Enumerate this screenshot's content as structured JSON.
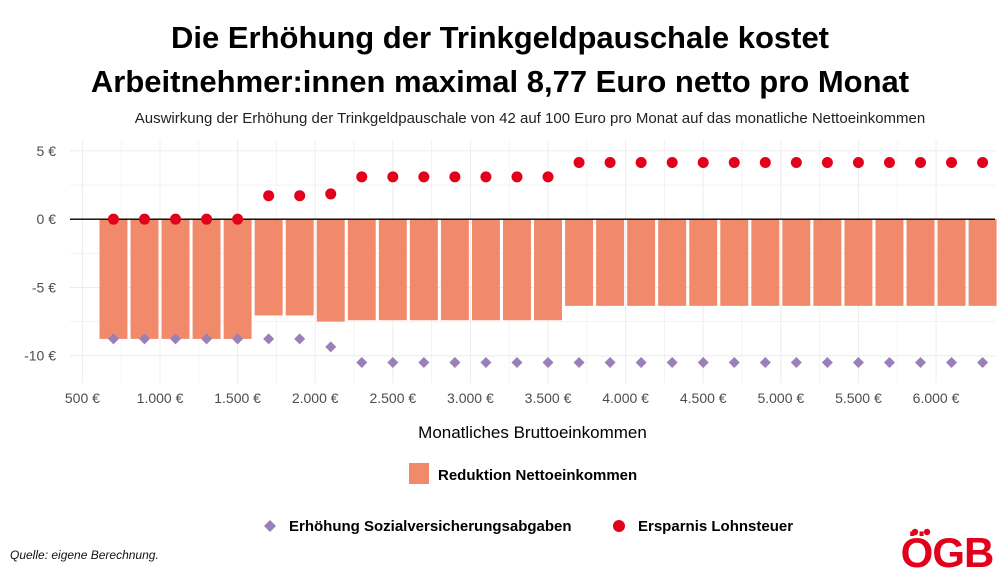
{
  "title_line1": "Die Erhöhung der Trinkgeldpauschale kostet",
  "title_line2": "Arbeitnehmer:innen maximal 8,77 Euro netto pro Monat",
  "subtitle": "Auswirkung der Erhöhung der Trinkgeldpauschale von 42 auf 100 Euro pro Monat auf das monatliche Nettoeinkommen",
  "source": "Quelle: eigene Berechnung.",
  "logo_text": "ÖGB",
  "colors": {
    "bar": "#f08a6b",
    "tax": "#e3001b",
    "social": "#9b7fb8",
    "grid": "#ececec",
    "zero_line": "#000000",
    "logo": "#e3001b"
  },
  "chart_data": {
    "type": "bar",
    "title": "Die Erhöhung der Trinkgeldpauschale kostet Arbeitnehmer:innen maximal 8,77 Euro netto pro Monat",
    "xlabel": "Monatliches Bruttoeinkommen",
    "ylabel": "",
    "xlim": [
      420,
      6380
    ],
    "ylim": [
      -12,
      5.8
    ],
    "x_ticks": [
      500,
      1000,
      1500,
      2000,
      2500,
      3000,
      3500,
      4000,
      4500,
      5000,
      5500,
      6000
    ],
    "x_tick_labels": [
      "500 €",
      "1.000 €",
      "1.500 €",
      "2.000 €",
      "2.500 €",
      "3.000 €",
      "3.500 €",
      "4.000 €",
      "4.500 €",
      "5.000 €",
      "5.500 €",
      "6.000 €"
    ],
    "y_ticks": [
      5,
      0,
      -5,
      -10
    ],
    "y_tick_labels": [
      "5 €",
      "0 €",
      "-5 €",
      "-10 €"
    ],
    "x": [
      700,
      900,
      1100,
      1300,
      1500,
      1700,
      1900,
      2100,
      2300,
      2500,
      2700,
      2900,
      3100,
      3300,
      3500,
      3700,
      3900,
      4100,
      4300,
      4500,
      4700,
      4900,
      5100,
      5300,
      5500,
      5700,
      5900,
      6100,
      6300
    ],
    "series": [
      {
        "name": "Reduktion Nettoeinkommen",
        "kind": "bar",
        "values": [
          -8.77,
          -8.77,
          -8.77,
          -8.77,
          -8.77,
          -7.05,
          -7.05,
          -7.5,
          -7.4,
          -7.4,
          -7.4,
          -7.4,
          -7.4,
          -7.4,
          -7.4,
          -6.35,
          -6.35,
          -6.35,
          -6.35,
          -6.35,
          -6.35,
          -6.35,
          -6.35,
          -6.35,
          -6.35,
          -6.35,
          -6.35,
          -6.35,
          -6.35
        ]
      },
      {
        "name": "Erhöhung Sozialversicherungsabgaben",
        "kind": "diamond",
        "values": [
          -8.77,
          -8.77,
          -8.77,
          -8.77,
          -8.77,
          -8.77,
          -8.77,
          -9.35,
          -10.5,
          -10.5,
          -10.5,
          -10.5,
          -10.5,
          -10.5,
          -10.5,
          -10.5,
          -10.5,
          -10.5,
          -10.5,
          -10.5,
          -10.5,
          -10.5,
          -10.5,
          -10.5,
          -10.5,
          -10.5,
          -10.5,
          -10.5,
          -10.5
        ]
      },
      {
        "name": "Ersparnis Lohnsteuer",
        "kind": "point",
        "values": [
          0,
          0,
          0,
          0,
          0,
          1.72,
          1.72,
          1.85,
          3.1,
          3.1,
          3.1,
          3.1,
          3.1,
          3.1,
          3.1,
          4.15,
          4.15,
          4.15,
          4.15,
          4.15,
          4.15,
          4.15,
          4.15,
          4.15,
          4.15,
          4.15,
          4.15,
          4.15,
          4.15
        ]
      }
    ],
    "legend": [
      "Reduktion Nettoeinkommen",
      "Erhöhung Sozialversicherungsabgaben",
      "Ersparnis Lohnsteuer"
    ],
    "legend_position": "bottom",
    "grid": true
  }
}
